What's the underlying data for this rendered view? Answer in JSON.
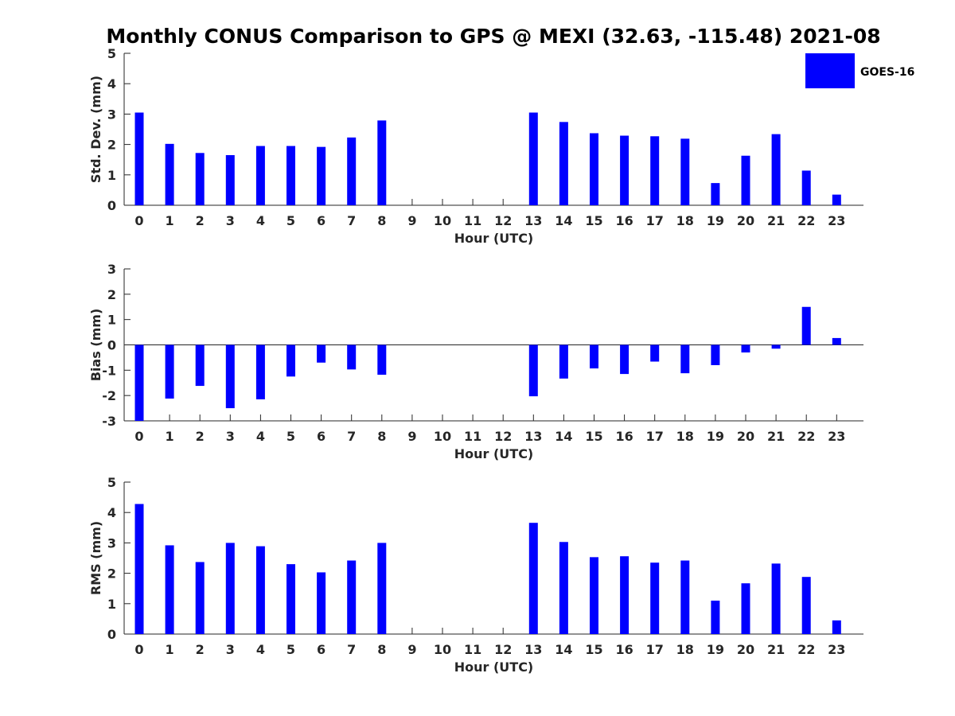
{
  "chart_data": {
    "type": "bar",
    "title": "Monthly CONUS Comparison to GPS @ MEXI (32.63, -115.48) 2021-08",
    "legend": {
      "entries": [
        "GOES-16"
      ],
      "placement": "top-right",
      "color": "#0000ff"
    },
    "bar_color": "#0000ff",
    "categories": [
      "0",
      "1",
      "2",
      "3",
      "4",
      "5",
      "6",
      "7",
      "8",
      "9",
      "10",
      "11",
      "12",
      "13",
      "14",
      "15",
      "16",
      "17",
      "18",
      "19",
      "20",
      "21",
      "22",
      "23"
    ],
    "panels": [
      {
        "ylabel": "Std. Dev. (mm)",
        "xlabel": "Hour (UTC)",
        "ylim": [
          0,
          5
        ],
        "yticks": [
          "0",
          "1",
          "2",
          "3",
          "4",
          "5"
        ],
        "series": [
          {
            "name": "GOES-16",
            "values": [
              3.05,
              2.02,
              1.72,
              1.65,
              1.95,
              1.95,
              1.92,
              2.23,
              2.79,
              null,
              null,
              null,
              null,
              3.05,
              2.74,
              2.37,
              2.29,
              2.27,
              2.19,
              0.73,
              1.63,
              2.34,
              1.14,
              0.35
            ]
          }
        ]
      },
      {
        "ylabel": "Bias (mm)",
        "xlabel": "Hour (UTC)",
        "ylim": [
          -3,
          3
        ],
        "yticks": [
          "-3",
          "-2",
          "-1",
          "0",
          "1",
          "2",
          "3"
        ],
        "series": [
          {
            "name": "GOES-16",
            "values": [
              -3.0,
              -2.12,
              -1.62,
              -2.5,
              -2.15,
              -1.25,
              -0.7,
              -0.97,
              -1.18,
              null,
              null,
              null,
              null,
              -2.03,
              -1.33,
              -0.93,
              -1.15,
              -0.66,
              -1.12,
              -0.8,
              -0.3,
              -0.15,
              1.5,
              0.27
            ]
          }
        ]
      },
      {
        "ylabel": "RMS (mm)",
        "xlabel": "Hour (UTC)",
        "ylim": [
          0,
          5
        ],
        "yticks": [
          "0",
          "1",
          "2",
          "3",
          "4",
          "5"
        ],
        "series": [
          {
            "name": "GOES-16",
            "values": [
              4.28,
              2.92,
              2.37,
              3.0,
              2.89,
              2.3,
              2.03,
              2.42,
              3.0,
              null,
              null,
              null,
              null,
              3.66,
              3.03,
              2.53,
              2.56,
              2.35,
              2.42,
              1.1,
              1.67,
              2.32,
              1.88,
              0.45
            ]
          }
        ]
      }
    ],
    "grid": false
  }
}
